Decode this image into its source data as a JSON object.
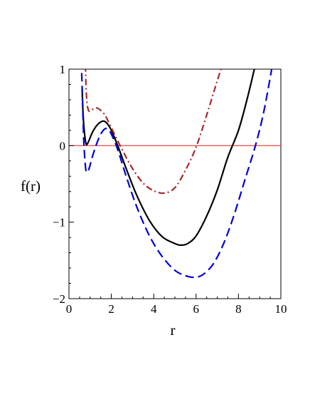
{
  "chart_data": {
    "type": "line",
    "xlabel": "r",
    "ylabel": "f(r)",
    "xlim": [
      0,
      10
    ],
    "ylim": [
      -2,
      1
    ],
    "x_ticks": [
      0,
      2,
      4,
      6,
      8,
      10
    ],
    "y_ticks": [
      -2,
      -1,
      0,
      1
    ],
    "x_tick_labels": [
      "0",
      "2",
      "4",
      "6",
      "8",
      "10"
    ],
    "y_tick_labels": [
      "−2",
      "−1",
      "0",
      "1"
    ],
    "grid": false,
    "legend": "none",
    "reference_line": {
      "y": 0,
      "color": "#e8352a"
    },
    "series": [
      {
        "style": "solid",
        "color": "#000000",
        "x": [
          0.62,
          0.66,
          0.72,
          0.8,
          0.86,
          0.95,
          1.1,
          1.3,
          1.5,
          1.65,
          1.8,
          2.0,
          2.3,
          2.7,
          3.2,
          3.8,
          4.4,
          5.0,
          5.3,
          5.6,
          6.0,
          6.5,
          7.0,
          7.5,
          8.0,
          8.4,
          8.75
        ],
        "y": [
          0.75,
          0.45,
          0.2,
          0.03,
          0.02,
          0.07,
          0.17,
          0.26,
          0.31,
          0.32,
          0.29,
          0.2,
          0.0,
          -0.3,
          -0.65,
          -0.98,
          -1.19,
          -1.28,
          -1.3,
          -1.28,
          -1.18,
          -0.92,
          -0.58,
          -0.15,
          0.2,
          0.6,
          1.0
        ]
      },
      {
        "style": "dashed",
        "color": "#0000dd",
        "x": [
          0.6,
          0.65,
          0.7,
          0.78,
          0.85,
          0.95,
          1.1,
          1.3,
          1.5,
          1.7,
          1.85,
          2.0,
          2.3,
          2.7,
          3.2,
          3.8,
          4.4,
          5.0,
          5.5,
          5.9,
          6.3,
          6.8,
          7.3,
          7.8,
          8.3,
          8.8,
          9.2,
          9.6
        ],
        "y": [
          0.95,
          0.5,
          0.05,
          -0.28,
          -0.35,
          -0.3,
          -0.15,
          0.02,
          0.15,
          0.22,
          0.21,
          0.15,
          -0.05,
          -0.4,
          -0.8,
          -1.18,
          -1.45,
          -1.63,
          -1.7,
          -1.72,
          -1.69,
          -1.55,
          -1.28,
          -0.9,
          -0.45,
          0.0,
          0.45,
          1.05
        ]
      },
      {
        "style": "dash-dot",
        "color": "#a52a2a",
        "x": [
          0.78,
          0.8,
          0.85,
          0.9,
          0.95,
          1.05,
          1.2,
          1.35,
          1.5,
          1.7,
          1.9,
          2.2,
          2.6,
          3.0,
          3.5,
          4.0,
          4.5,
          5.0,
          5.5,
          6.0,
          6.5,
          7.0,
          7.3
        ],
        "y": [
          1.05,
          0.8,
          0.56,
          0.48,
          0.45,
          0.46,
          0.49,
          0.49,
          0.46,
          0.4,
          0.29,
          0.12,
          -0.1,
          -0.3,
          -0.49,
          -0.59,
          -0.62,
          -0.55,
          -0.32,
          -0.02,
          0.4,
          0.85,
          1.1
        ]
      }
    ]
  }
}
